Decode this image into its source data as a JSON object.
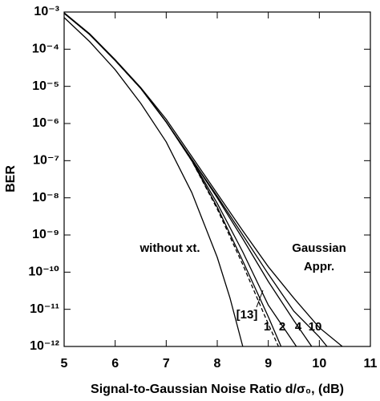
{
  "chart_data": {
    "type": "line",
    "x_label": "Signal-to-Gaussian Noise Ratio d/σ₀, (dB)",
    "y_label": "BER",
    "log_y": true,
    "xlim": [
      5,
      11
    ],
    "xticks": [
      5,
      6,
      7,
      8,
      9,
      10,
      11
    ],
    "ylim": [
      1e-12,
      0.001
    ],
    "yticks": [
      {
        "value": 1e-12,
        "label": "10⁻¹²"
      },
      {
        "value": 1e-11,
        "label": "10⁻¹¹"
      },
      {
        "value": 1e-10,
        "label": "10⁻¹⁰"
      },
      {
        "value": 1e-09,
        "label": "10⁻⁹"
      },
      {
        "value": 1e-08,
        "label": "10⁻⁸"
      },
      {
        "value": 1e-07,
        "label": "10⁻⁷"
      },
      {
        "value": 1e-06,
        "label": "10⁻⁶"
      },
      {
        "value": 1e-05,
        "label": "10⁻⁵"
      },
      {
        "value": 0.0001,
        "label": "10⁻⁴"
      },
      {
        "value": 0.001,
        "label": "10⁻³"
      }
    ],
    "series": [
      {
        "color": "#000000",
        "dashed": false,
        "x": [
          5,
          5.5,
          6,
          6.5,
          7,
          7.5,
          8,
          8.25,
          8.5
        ],
        "values": [
          0.00071,
          0.00016,
          2.8e-05,
          3.5e-06,
          3.2e-07,
          1.4e-08,
          2.5e-10,
          2e-11,
          1e-12
        ]
      },
      {
        "color": "#000000",
        "dashed": true,
        "x": [
          5,
          5.5,
          6,
          6.5,
          7,
          7.5,
          8,
          8.5,
          9,
          9.2
        ],
        "values": [
          0.00093,
          0.00025,
          5e-05,
          8.9e-06,
          1.1e-06,
          1e-07,
          5e-09,
          1.6e-10,
          4e-12,
          1e-12
        ]
      },
      {
        "color": "#000000",
        "dashed": false,
        "x": [
          5,
          5.5,
          6,
          6.5,
          7,
          7.5,
          8,
          8.5,
          9,
          9.25
        ],
        "values": [
          0.00093,
          0.00025,
          5e-05,
          8.9e-06,
          1.1e-06,
          1e-07,
          5.6e-09,
          2e-10,
          6.3e-12,
          1e-12
        ]
      },
      {
        "color": "#000000",
        "dashed": false,
        "x": [
          5,
          5.5,
          6,
          6.5,
          7,
          7.5,
          8,
          8.5,
          9,
          9.55
        ],
        "values": [
          0.00093,
          0.00025,
          5e-05,
          8.9e-06,
          1.1e-06,
          1.05e-07,
          7.1e-09,
          3.5e-10,
          1.3e-11,
          1e-12
        ]
      },
      {
        "color": "#000000",
        "dashed": false,
        "x": [
          5,
          5.5,
          6,
          6.5,
          7,
          7.5,
          8,
          8.5,
          9,
          9.5,
          9.85
        ],
        "values": [
          0.00093,
          0.00025,
          5e-05,
          8.9e-06,
          1.1e-06,
          1.1e-07,
          1e-08,
          7.9e-10,
          5.6e-11,
          5e-12,
          1e-12
        ]
      },
      {
        "color": "#000000",
        "dashed": false,
        "x": [
          5,
          5.5,
          6,
          6.5,
          7,
          7.5,
          8,
          8.5,
          9,
          9.5,
          10,
          10.15
        ],
        "values": [
          0.00093,
          0.00025,
          5e-05,
          8.9e-06,
          1.1e-06,
          1.1e-07,
          1.1e-08,
          1e-09,
          8.9e-11,
          8.9e-12,
          1.8e-12,
          1e-12
        ]
      },
      {
        "color": "#000000",
        "dashed": false,
        "x": [
          5,
          5.5,
          6,
          6.5,
          7,
          7.5,
          8,
          8.5,
          9,
          9.5,
          10,
          10.45
        ],
        "values": [
          0.00096,
          0.00026,
          5.2e-05,
          9.3e-06,
          1.3e-06,
          1.3e-07,
          1.3e-08,
          1.3e-09,
          1.4e-10,
          2e-11,
          3.2e-12,
          1e-12
        ]
      }
    ],
    "annotations": [
      "without xt.",
      "Gaussian",
      "Appr.",
      "[13]",
      "1",
      "2",
      "4",
      "10"
    ]
  }
}
